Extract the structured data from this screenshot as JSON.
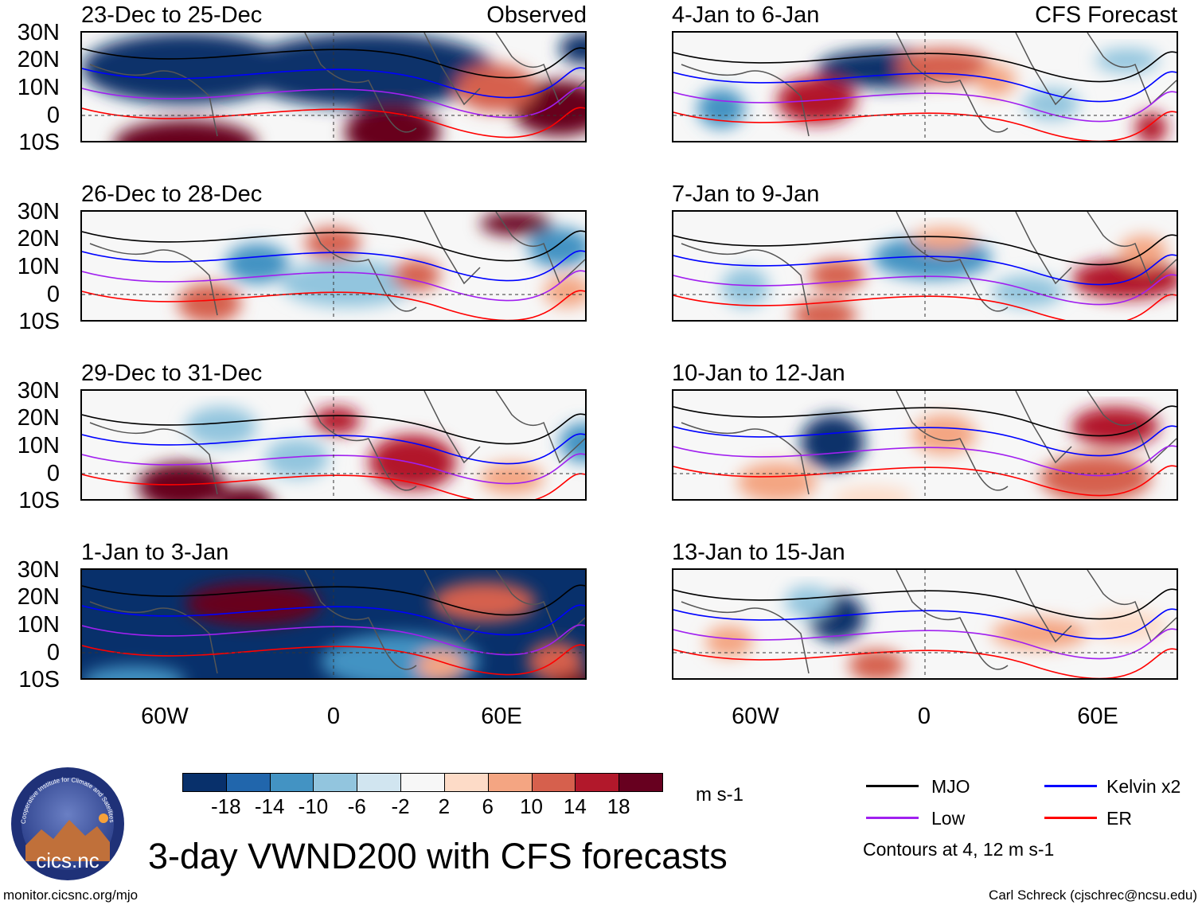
{
  "panels": [
    {
      "title": "23-Dec to 25-Dec",
      "tag": "Observed",
      "scheme": "obs1"
    },
    {
      "title": "26-Dec to 28-Dec",
      "tag": "",
      "scheme": "obs2"
    },
    {
      "title": "29-Dec to 31-Dec",
      "tag": "",
      "scheme": "obs3"
    },
    {
      "title": "1-Jan to 3-Jan",
      "tag": "",
      "scheme": "obs4"
    },
    {
      "title": "4-Jan to 6-Jan",
      "tag": "CFS Forecast",
      "scheme": "fc1"
    },
    {
      "title": "7-Jan to 9-Jan",
      "tag": "",
      "scheme": "fc2"
    },
    {
      "title": "10-Jan to 12-Jan",
      "tag": "",
      "scheme": "fc3"
    },
    {
      "title": "13-Jan to 15-Jan",
      "tag": "",
      "scheme": "fc4"
    }
  ],
  "lat_labels": [
    "30N",
    "20N",
    "10N",
    "0",
    "10S"
  ],
  "lon_labels": [
    "60W",
    "0",
    "60E"
  ],
  "colorbar": {
    "colors": [
      "#08306b",
      "#2166ac",
      "#4393c3",
      "#92c5de",
      "#d1e5f0",
      "#f7f7f7",
      "#fddbc7",
      "#f4a582",
      "#d6604d",
      "#b2182b",
      "#67001f"
    ],
    "labels": [
      "-18",
      "-14",
      "-10",
      "-6",
      "-2",
      "2",
      "6",
      "10",
      "14",
      "18"
    ],
    "units": "m s-1"
  },
  "legend": {
    "items": [
      {
        "label": "MJO",
        "color": "#000000"
      },
      {
        "label": "Kelvin x2",
        "color": "#0000ff"
      },
      {
        "label": "Low",
        "color": "#a020f0"
      },
      {
        "label": "ER",
        "color": "#ff0000"
      }
    ],
    "note": "Contours at 4, 12 m s-1"
  },
  "logo_text": "cics.nc",
  "logo_ring_text": "Cooperative Institute for Climate and Satellites",
  "main_title": "3-day VWND200 with CFS forecasts",
  "footer_left": "monitor.cicsnc.org/mjo",
  "footer_right": "Carl Schreck (cjschrec@ncsu.edu)"
}
